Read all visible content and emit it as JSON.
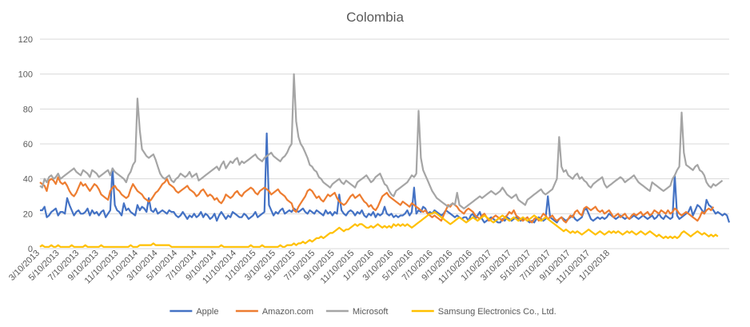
{
  "chart_data": {
    "type": "line",
    "title": "Colombia",
    "xlabel": "",
    "ylabel": "",
    "ylim": [
      0,
      120
    ],
    "yticks": [
      0,
      20,
      40,
      60,
      80,
      100,
      120
    ],
    "grid": true,
    "legend_position": "bottom",
    "x_start": "3/10/2013",
    "x_step": "weekly",
    "x_tick_labels": [
      "3/10/2013",
      "5/10/2013",
      "7/10/2013",
      "9/10/2013",
      "11/10/2013",
      "1/10/2014",
      "3/10/2014",
      "5/10/2014",
      "7/10/2014",
      "9/10/2014",
      "11/10/2014",
      "1/10/2015",
      "3/10/2015",
      "5/10/2015",
      "7/10/2015",
      "9/10/2015",
      "11/10/2015",
      "1/10/2016",
      "3/10/2016",
      "5/10/2016",
      "7/10/2016",
      "9/10/2016",
      "11/10/2016",
      "1/10/2017",
      "3/10/2017",
      "5/10/2017",
      "7/10/2017",
      "9/10/2017",
      "11/10/2017",
      "1/10/2018"
    ],
    "series": [
      {
        "name": "Apple",
        "color": "#4472C4",
        "values": [
          22,
          22,
          24,
          18,
          19,
          21,
          22,
          23,
          19,
          21,
          21,
          20,
          29,
          25,
          22,
          19,
          21,
          22,
          20,
          20,
          21,
          23,
          19,
          22,
          20,
          21,
          19,
          21,
          22,
          18,
          20,
          22,
          46,
          25,
          22,
          21,
          19,
          26,
          22,
          23,
          21,
          20,
          19,
          25,
          22,
          24,
          23,
          21,
          29,
          22,
          21,
          23,
          20,
          21,
          22,
          21,
          20,
          22,
          21,
          21,
          19,
          18,
          19,
          21,
          19,
          17,
          19,
          18,
          20,
          18,
          19,
          21,
          18,
          20,
          19,
          17,
          18,
          20,
          16,
          19,
          21,
          19,
          17,
          19,
          18,
          21,
          20,
          19,
          18,
          18,
          20,
          19,
          17,
          18,
          19,
          21,
          18,
          19,
          20,
          21,
          66,
          25,
          22,
          19,
          21,
          20,
          22,
          23,
          20,
          21,
          22,
          21,
          23,
          22,
          21,
          22,
          23,
          21,
          20,
          22,
          21,
          20,
          22,
          21,
          20,
          19,
          22,
          20,
          21,
          19,
          21,
          20,
          31,
          22,
          20,
          19,
          21,
          22,
          21,
          19,
          21,
          20,
          22,
          19,
          18,
          20,
          19,
          21,
          18,
          20,
          19,
          20,
          24,
          20,
          19,
          20,
          18,
          19,
          18,
          19,
          19,
          20,
          22,
          19,
          21,
          35,
          20,
          22,
          21,
          24,
          23,
          20,
          21,
          20,
          22,
          21,
          20,
          19,
          20,
          22,
          21,
          20,
          19,
          18,
          19,
          18,
          17,
          18,
          18,
          16,
          19,
          20,
          17,
          19,
          21,
          17,
          15,
          16,
          17,
          18,
          17,
          16,
          15,
          15,
          17,
          16,
          18,
          17,
          16,
          17,
          18,
          17,
          16,
          17,
          17,
          16,
          15,
          16,
          15,
          17,
          18,
          17,
          16,
          17,
          30,
          18,
          17,
          16,
          15,
          17,
          18,
          17,
          16,
          17,
          18,
          19,
          17,
          16,
          17,
          18,
          22,
          23,
          20,
          17,
          16,
          17,
          18,
          17,
          18,
          17,
          18,
          20,
          19,
          18,
          17,
          18,
          19,
          18,
          17,
          18,
          17,
          18,
          19,
          18,
          17,
          18,
          19,
          18,
          17,
          18,
          19,
          17,
          18,
          20,
          18,
          17,
          19,
          18,
          17,
          18,
          42,
          19,
          17,
          18,
          19,
          20,
          21,
          24,
          19,
          22,
          25,
          24,
          22,
          20,
          28,
          25,
          24,
          22,
          20,
          21,
          20,
          19,
          20,
          19,
          15
        ]
      },
      {
        "name": "Amazon.com",
        "color": "#ED7D31",
        "values": [
          38,
          37,
          36,
          33,
          39,
          40,
          39,
          37,
          41,
          38,
          37,
          38,
          36,
          33,
          31,
          30,
          32,
          35,
          38,
          36,
          37,
          35,
          33,
          35,
          37,
          36,
          34,
          31,
          30,
          29,
          28,
          33,
          35,
          36,
          34,
          33,
          31,
          30,
          29,
          30,
          34,
          37,
          35,
          33,
          32,
          31,
          29,
          28,
          27,
          28,
          30,
          32,
          33,
          35,
          37,
          38,
          40,
          37,
          36,
          35,
          33,
          32,
          33,
          34,
          35,
          36,
          34,
          33,
          32,
          30,
          31,
          33,
          34,
          32,
          30,
          31,
          30,
          28,
          29,
          27,
          26,
          28,
          31,
          30,
          29,
          30,
          32,
          33,
          31,
          30,
          32,
          33,
          34,
          35,
          34,
          32,
          31,
          33,
          34,
          35,
          34,
          33,
          31,
          32,
          33,
          34,
          32,
          31,
          30,
          28,
          27,
          26,
          22,
          21,
          24,
          26,
          28,
          30,
          33,
          34,
          33,
          31,
          29,
          30,
          28,
          27,
          29,
          31,
          30,
          31,
          32,
          29,
          27,
          26,
          25,
          26,
          28,
          30,
          31,
          29,
          30,
          31,
          29,
          27,
          26,
          24,
          25,
          23,
          22,
          24,
          27,
          30,
          31,
          32,
          30,
          29,
          28,
          27,
          26,
          25,
          27,
          26,
          25,
          24,
          26,
          25,
          24,
          23,
          22,
          21,
          22,
          20,
          19,
          18,
          19,
          18,
          17,
          16,
          19,
          22,
          25,
          24,
          26,
          25,
          24,
          22,
          21,
          20,
          22,
          23,
          22,
          21,
          19,
          18,
          17,
          19,
          20,
          18,
          16,
          17,
          18,
          19,
          18,
          17,
          16,
          18,
          19,
          21,
          20,
          22,
          19,
          18,
          17,
          16,
          17,
          18,
          16,
          15,
          17,
          18,
          16,
          18,
          20,
          19,
          17,
          18,
          19,
          17,
          16,
          17,
          18,
          16,
          15,
          17,
          19,
          18,
          21,
          22,
          20,
          19,
          23,
          24,
          23,
          22,
          23,
          24,
          22,
          21,
          22,
          20,
          21,
          22,
          20,
          18,
          19,
          20,
          18,
          19,
          20,
          18,
          17,
          19,
          20,
          19,
          20,
          21,
          19,
          20,
          21,
          19,
          20,
          22,
          21,
          20,
          22,
          21,
          20,
          22,
          20,
          21,
          23,
          22,
          20,
          19,
          20,
          21,
          20,
          19,
          18,
          17,
          16,
          18,
          21,
          20,
          22,
          23,
          22,
          24
        ]
      },
      {
        "name": "Microsoft",
        "color": "#A5A5A5",
        "values": [
          36,
          35,
          40,
          38,
          41,
          42,
          40,
          41,
          43,
          40,
          41,
          42,
          43,
          44,
          45,
          46,
          44,
          43,
          42,
          45,
          44,
          43,
          41,
          45,
          44,
          43,
          41,
          42,
          43,
          44,
          45,
          42,
          46,
          44,
          43,
          42,
          41,
          40,
          38,
          42,
          44,
          48,
          50,
          86,
          68,
          57,
          55,
          53,
          52,
          53,
          54,
          51,
          47,
          43,
          41,
          40,
          41,
          42,
          39,
          38,
          40,
          41,
          43,
          42,
          41,
          42,
          44,
          41,
          42,
          43,
          39,
          40,
          41,
          42,
          43,
          44,
          45,
          46,
          47,
          45,
          48,
          50,
          46,
          48,
          50,
          49,
          51,
          52,
          48,
          50,
          49,
          50,
          51,
          52,
          53,
          54,
          52,
          51,
          50,
          52,
          53,
          54,
          55,
          53,
          52,
          51,
          50,
          52,
          53,
          55,
          58,
          60,
          100,
          73,
          64,
          60,
          58,
          55,
          52,
          48,
          47,
          45,
          44,
          41,
          40,
          38,
          37,
          36,
          35,
          37,
          38,
          39,
          40,
          38,
          37,
          39,
          38,
          37,
          36,
          35,
          38,
          39,
          40,
          41,
          42,
          40,
          38,
          39,
          41,
          42,
          43,
          40,
          37,
          36,
          33,
          31,
          30,
          33,
          34,
          35,
          36,
          37,
          38,
          40,
          42,
          41,
          43,
          79,
          52,
          45,
          42,
          39,
          36,
          33,
          31,
          29,
          28,
          27,
          26,
          25,
          24,
          25,
          26,
          25,
          32,
          25,
          24,
          23,
          24,
          25,
          26,
          27,
          28,
          29,
          30,
          29,
          30,
          31,
          32,
          33,
          32,
          31,
          32,
          33,
          35,
          33,
          31,
          30,
          29,
          30,
          31,
          28,
          27,
          26,
          25,
          28,
          29,
          30,
          31,
          32,
          33,
          34,
          32,
          31,
          32,
          33,
          34,
          37,
          40,
          64,
          47,
          44,
          45,
          42,
          41,
          40,
          42,
          43,
          40,
          41,
          39,
          38,
          36,
          35,
          37,
          38,
          39,
          40,
          41,
          37,
          35,
          36,
          37,
          38,
          39,
          40,
          41,
          40,
          38,
          39,
          40,
          41,
          42,
          40,
          38,
          37,
          36,
          35,
          34,
          33,
          38,
          37,
          36,
          35,
          34,
          33,
          34,
          35,
          36,
          40,
          42,
          45,
          47,
          78,
          55,
          48,
          47,
          46,
          45,
          47,
          48,
          45,
          44,
          42,
          38,
          36,
          35,
          37,
          36,
          37,
          38,
          39
        ]
      },
      {
        "name": "Samsung Electronics Co., Ltd.",
        "color": "#FFC000",
        "values": [
          1,
          2,
          1,
          1,
          1,
          2,
          1,
          1,
          2,
          1,
          1,
          1,
          1,
          1,
          2,
          1,
          1,
          1,
          1,
          1,
          2,
          1,
          1,
          1,
          1,
          1,
          1,
          2,
          1,
          1,
          1,
          1,
          1,
          1,
          1,
          1,
          1,
          1,
          1,
          1,
          2,
          1,
          1,
          1,
          2,
          2,
          2,
          2,
          2,
          2,
          3,
          2,
          2,
          2,
          2,
          2,
          2,
          2,
          1,
          1,
          1,
          1,
          1,
          1,
          1,
          1,
          1,
          1,
          1,
          1,
          1,
          1,
          1,
          1,
          1,
          1,
          1,
          1,
          1,
          1,
          2,
          1,
          1,
          1,
          1,
          1,
          1,
          1,
          1,
          1,
          1,
          1,
          1,
          2,
          1,
          1,
          1,
          1,
          2,
          1,
          1,
          1,
          1,
          1,
          1,
          1,
          2,
          1,
          1,
          2,
          2,
          2,
          3,
          2,
          3,
          3,
          4,
          3,
          4,
          5,
          4,
          5,
          6,
          6,
          7,
          6,
          7,
          8,
          9,
          9,
          10,
          11,
          12,
          11,
          10,
          11,
          11,
          12,
          13,
          14,
          13,
          14,
          14,
          13,
          12,
          12,
          13,
          12,
          13,
          14,
          13,
          12,
          13,
          12,
          13,
          12,
          14,
          13,
          14,
          13,
          14,
          13,
          14,
          13,
          12,
          13,
          14,
          15,
          16,
          17,
          18,
          19,
          20,
          20,
          21,
          20,
          19,
          18,
          17,
          16,
          15,
          14,
          15,
          16,
          17,
          18,
          17,
          16,
          15,
          16,
          17,
          18,
          17,
          16,
          17,
          18,
          19,
          18,
          17,
          16,
          15,
          16,
          17,
          18,
          19,
          18,
          17,
          16,
          17,
          18,
          17,
          16,
          17,
          18,
          17,
          16,
          17,
          18,
          19,
          18,
          17,
          16,
          17,
          18,
          17,
          16,
          15,
          14,
          13,
          12,
          11,
          10,
          11,
          10,
          9,
          10,
          9,
          10,
          9,
          8,
          9,
          10,
          11,
          10,
          9,
          8,
          9,
          10,
          9,
          8,
          9,
          10,
          9,
          10,
          9,
          10,
          9,
          8,
          9,
          10,
          9,
          10,
          9,
          8,
          9,
          10,
          9,
          8,
          9,
          10,
          9,
          8,
          7,
          8,
          7,
          6,
          7,
          6,
          7,
          6,
          7,
          6,
          7,
          9,
          10,
          9,
          8,
          7,
          8,
          9,
          10,
          9,
          8,
          9,
          8,
          7,
          8,
          7,
          8,
          7
        ]
      }
    ]
  }
}
